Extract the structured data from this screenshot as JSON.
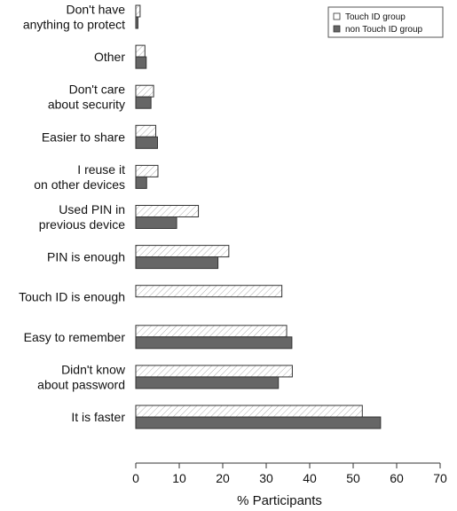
{
  "chart_data": {
    "type": "bar",
    "orientation": "horizontal",
    "title": "",
    "xlabel": "% Participants",
    "ylabel": "",
    "xlim": [
      0,
      70
    ],
    "xticks": [
      0,
      10,
      20,
      30,
      40,
      50,
      60,
      70
    ],
    "grid": false,
    "legend_position": "top-right",
    "categories": [
      [
        "Don't have",
        "anything to protect"
      ],
      [
        "Other"
      ],
      [
        "Don't care",
        "about security"
      ],
      [
        "Easier to share"
      ],
      [
        "I reuse it",
        "on other devices"
      ],
      [
        "Used PIN in",
        "previous device"
      ],
      [
        "PIN is enough"
      ],
      [
        "Touch ID is enough"
      ],
      [
        "Easy to remember"
      ],
      [
        "Didn't know",
        "about password"
      ],
      [
        "It is faster"
      ]
    ],
    "series": [
      {
        "name": "Touch ID group",
        "color": "#ffffff",
        "pattern": "hatch",
        "values": [
          1.0,
          2.1,
          4.1,
          4.6,
          5.1,
          14.4,
          21.4,
          33.6,
          34.7,
          36.0,
          52.1
        ]
      },
      {
        "name": "non Touch ID group",
        "color": "#666666",
        "pattern": "solid",
        "values": [
          0.5,
          2.4,
          3.5,
          5.0,
          2.5,
          9.4,
          18.9,
          0,
          35.9,
          32.8,
          56.3
        ]
      }
    ]
  }
}
